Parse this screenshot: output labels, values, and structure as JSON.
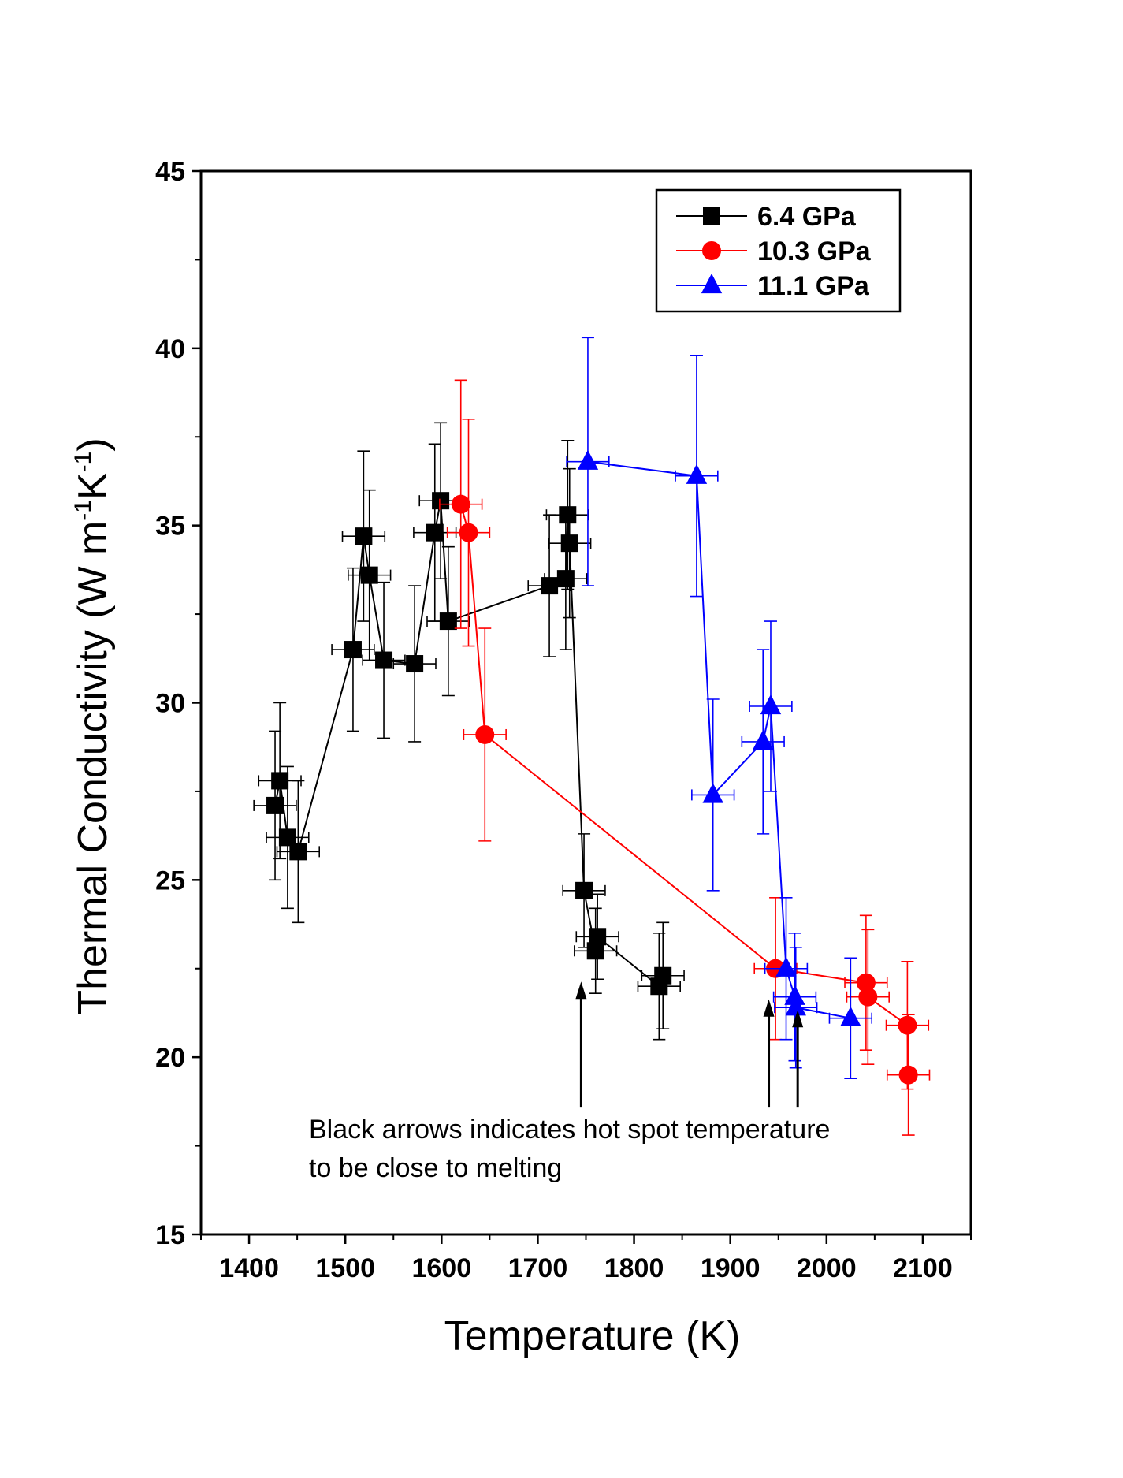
{
  "chart_data": {
    "type": "scatter",
    "xlabel": "Temperature (K)",
    "ylabel_main": "Thermal Conductivity (W m",
    "ylabel_sup1": "-1",
    "ylabel_mid": "K",
    "ylabel_sup2": "-1",
    "ylabel_end": ")",
    "xlim": [
      1350,
      2150
    ],
    "ylim": [
      15,
      45
    ],
    "x_ticks": [
      1400,
      1500,
      1600,
      1700,
      1800,
      1900,
      2000,
      2100
    ],
    "y_ticks": [
      15,
      20,
      25,
      30,
      35,
      40,
      45
    ],
    "legend_position": "top-right",
    "annotation_line1": "Black arrows indicates hot spot temperature",
    "annotation_line2": "to be close to melting",
    "arrows_x": [
      1745,
      1940,
      1970
    ],
    "arrow_y_from": 18.6,
    "arrow_y_to": 22,
    "arrow_y_to_list": [
      22,
      21.5,
      21.2
    ],
    "series": [
      {
        "name": "6.4 GPa",
        "color": "#000000",
        "marker": "square",
        "x": [
          1427,
          1432,
          1440,
          1451,
          1508,
          1519,
          1525,
          1540,
          1572,
          1593,
          1599,
          1607,
          1712,
          1729,
          1731,
          1733,
          1748,
          1760,
          1762,
          1826,
          1830
        ],
        "y": [
          27.1,
          27.8,
          26.2,
          25.8,
          31.5,
          34.7,
          33.6,
          31.2,
          31.1,
          34.8,
          35.7,
          32.3,
          33.3,
          33.5,
          35.3,
          34.5,
          24.7,
          23.0,
          23.4,
          22.0,
          22.3
        ],
        "xerr": 22,
        "yerr": [
          2.1,
          2.2,
          2.0,
          2.0,
          2.3,
          2.4,
          2.4,
          2.2,
          2.2,
          2.5,
          2.2,
          2.1,
          2.0,
          2.0,
          2.1,
          2.1,
          1.6,
          1.2,
          1.2,
          1.5,
          1.5
        ],
        "line_order": [
          0,
          1,
          2,
          3,
          4,
          5,
          6,
          7,
          8,
          9,
          10,
          11,
          12,
          13,
          14,
          15,
          16,
          17,
          18,
          19,
          20
        ]
      },
      {
        "name": "10.3 GPa",
        "color": "#ff0000",
        "marker": "circle",
        "x": [
          1620,
          1628,
          1645,
          1947,
          2041,
          2043,
          2084,
          2085
        ],
        "y": [
          35.6,
          34.8,
          29.1,
          22.5,
          22.1,
          21.7,
          20.9,
          19.5
        ],
        "xerr": 22,
        "yerr": [
          3.5,
          3.2,
          3.0,
          2.0,
          1.9,
          1.9,
          1.8,
          1.7
        ],
        "line_order": [
          0,
          1,
          2,
          3,
          4,
          5,
          6,
          7
        ]
      },
      {
        "name": "11.1 GPa",
        "color": "#0000ff",
        "marker": "triangle",
        "x": [
          1752,
          1865,
          1882,
          1934,
          1942,
          1958,
          1967,
          1968,
          2025
        ],
        "y": [
          36.8,
          36.4,
          27.4,
          28.9,
          29.9,
          22.5,
          21.7,
          21.4,
          21.1
        ],
        "xerr": 22,
        "yerr": [
          3.5,
          3.4,
          2.7,
          2.6,
          2.4,
          2.0,
          1.8,
          1.7,
          1.7
        ],
        "line_order": [
          0,
          1,
          2,
          3,
          4,
          5,
          6,
          7,
          8
        ]
      }
    ]
  }
}
